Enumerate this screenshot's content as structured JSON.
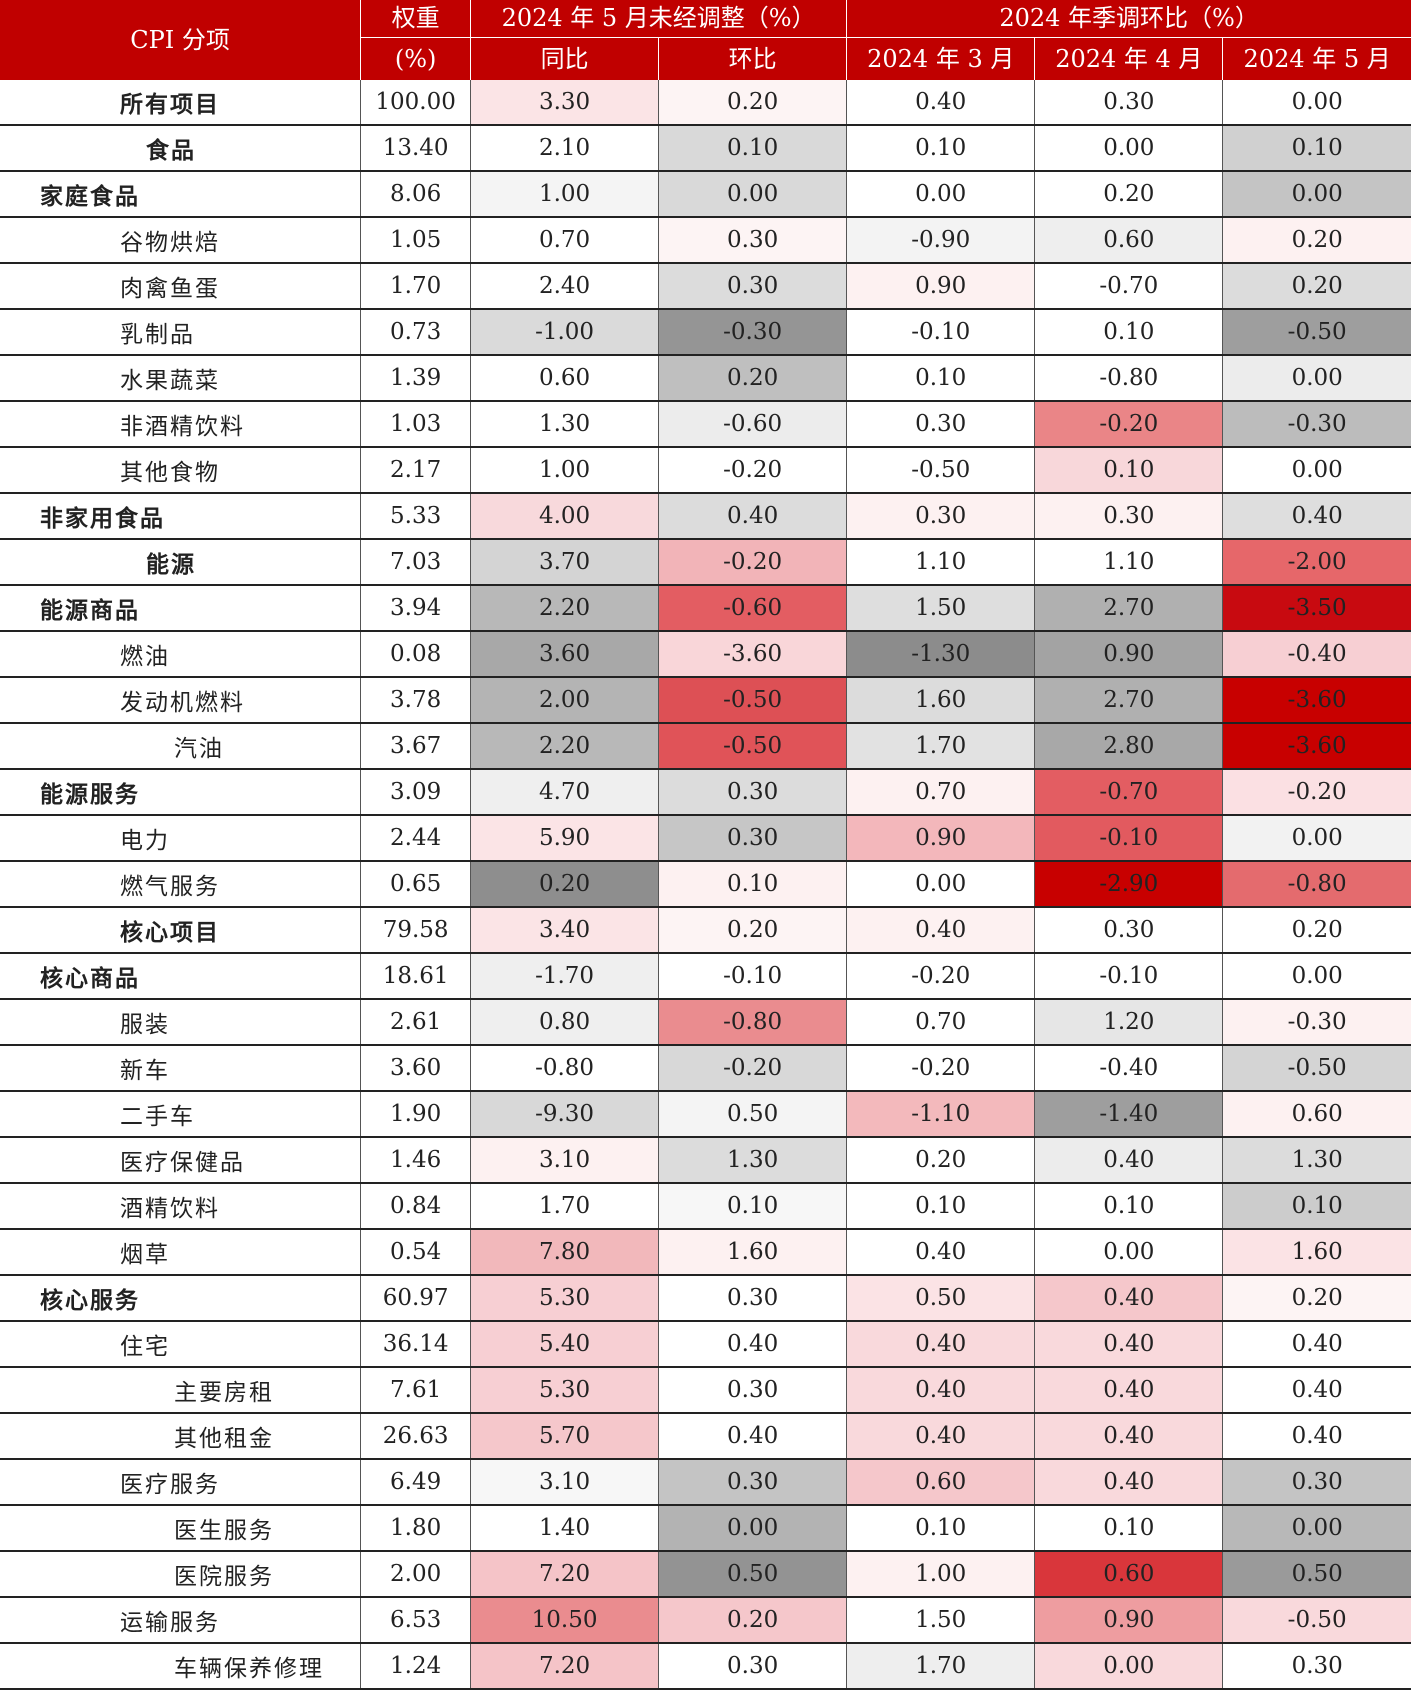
{
  "header": {
    "cpi_item": "CPI 分项",
    "weight_line1": "权重",
    "weight_line2": "(%)",
    "unadjusted_group": "2024 年 5 月未经调整（%）",
    "seasonal_group": "2024 年季调环比（%）",
    "yoy": "同比",
    "mom": "环比",
    "mar": "2024 年 3 月",
    "apr": "2024 年 4 月",
    "may": "2024 年 5 月"
  },
  "rows": [
    {
      "name": "所有项目",
      "level": 1,
      "bold": true,
      "weight": "100.00",
      "yoy": "3.30",
      "mom": "0.20",
      "mar": "0.40",
      "apr": "0.30",
      "may": "0.00",
      "colors": [
        "#fbe4e6",
        "#fdf4f4",
        "#ffffff",
        "#ffffff",
        "#ffffff"
      ]
    },
    {
      "name": "食品",
      "level": 2,
      "bold": true,
      "weight": "13.40",
      "yoy": "2.10",
      "mom": "0.10",
      "mar": "0.10",
      "apr": "0.00",
      "may": "0.10",
      "colors": [
        "#ffffff",
        "#d9d9d9",
        "#ffffff",
        "#ffffff",
        "#d0d0d0"
      ]
    },
    {
      "name": "家庭食品",
      "level": 0,
      "bold": true,
      "weight": "8.06",
      "yoy": "1.00",
      "mom": "0.00",
      "mar": "0.00",
      "apr": "0.20",
      "may": "0.00",
      "colors": [
        "#f4f4f4",
        "#d9d9d9",
        "#ffffff",
        "#ffffff",
        "#c4c4c4"
      ]
    },
    {
      "name": "谷物烘焙",
      "level": 1,
      "bold": false,
      "weight": "1.05",
      "yoy": "0.70",
      "mom": "0.30",
      "mar": "-0.90",
      "apr": "0.60",
      "may": "0.20",
      "colors": [
        "#ffffff",
        "#fdf4f4",
        "#f3f3f3",
        "#eeeeee",
        "#fdf1f1"
      ]
    },
    {
      "name": "肉禽鱼蛋",
      "level": 1,
      "bold": false,
      "weight": "1.70",
      "yoy": "2.40",
      "mom": "0.30",
      "mar": "0.90",
      "apr": "-0.70",
      "may": "0.20",
      "colors": [
        "#ffffff",
        "#dcdcdc",
        "#fdf1f1",
        "#ffffff",
        "#dcdcdc"
      ]
    },
    {
      "name": "乳制品",
      "level": 1,
      "bold": false,
      "weight": "0.73",
      "yoy": "-1.00",
      "mom": "-0.30",
      "mar": "-0.10",
      "apr": "0.10",
      "may": "-0.50",
      "colors": [
        "#dadada",
        "#959595",
        "#ffffff",
        "#ffffff",
        "#9e9e9e"
      ]
    },
    {
      "name": "水果蔬菜",
      "level": 1,
      "bold": false,
      "weight": "1.39",
      "yoy": "0.60",
      "mom": "0.20",
      "mar": "0.10",
      "apr": "-0.80",
      "may": "0.00",
      "colors": [
        "#ffffff",
        "#bfbfbf",
        "#ffffff",
        "#ffffff",
        "#ececec"
      ]
    },
    {
      "name": "非酒精饮料",
      "level": 1,
      "bold": false,
      "weight": "1.03",
      "yoy": "1.30",
      "mom": "-0.60",
      "mar": "0.30",
      "apr": "-0.20",
      "may": "-0.30",
      "colors": [
        "#ffffff",
        "#ececec",
        "#ffffff",
        "#ea8587",
        "#bcbcbc"
      ]
    },
    {
      "name": "其他食物",
      "level": 1,
      "bold": false,
      "weight": "2.17",
      "yoy": "1.00",
      "mom": "-0.20",
      "mar": "-0.50",
      "apr": "0.10",
      "may": "0.00",
      "colors": [
        "#ffffff",
        "#ffffff",
        "#ffffff",
        "#f8d7da",
        "#ffffff"
      ]
    },
    {
      "name": "非家用食品",
      "level": 0,
      "bold": true,
      "weight": "5.33",
      "yoy": "4.00",
      "mom": "0.40",
      "mar": "0.30",
      "apr": "0.30",
      "may": "0.40",
      "colors": [
        "#f8d9dc",
        "#dcdcdc",
        "#fdf1f1",
        "#fdf1f1",
        "#dedede"
      ]
    },
    {
      "name": "能源",
      "level": 2,
      "bold": true,
      "weight": "7.03",
      "yoy": "3.70",
      "mom": "-0.20",
      "mar": "1.10",
      "apr": "1.10",
      "may": "-2.00",
      "colors": [
        "#d4d4d4",
        "#f2b4b8",
        "#ffffff",
        "#ffffff",
        "#e6676a"
      ]
    },
    {
      "name": "能源商品",
      "level": 0,
      "bold": true,
      "weight": "3.94",
      "yoy": "2.20",
      "mom": "-0.60",
      "mar": "1.50",
      "apr": "2.70",
      "may": "-3.50",
      "colors": [
        "#b8b8b8",
        "#e35d62",
        "#dedede",
        "#b0b0b0",
        "#c80a10"
      ]
    },
    {
      "name": "燃油",
      "level": 1,
      "bold": false,
      "weight": "0.08",
      "yoy": "3.60",
      "mom": "-3.60",
      "mar": "-1.30",
      "apr": "0.90",
      "may": "-0.40",
      "colors": [
        "#a8a8a8",
        "#f9d6d9",
        "#8c8c8c",
        "#a3a3a3",
        "#f7cfd3"
      ]
    },
    {
      "name": "发动机燃料",
      "level": 1,
      "bold": false,
      "weight": "3.78",
      "yoy": "2.00",
      "mom": "-0.50",
      "mar": "1.60",
      "apr": "2.70",
      "may": "-3.60",
      "colors": [
        "#b4b4b4",
        "#dd5055",
        "#dcdcdc",
        "#b0b0b0",
        "#c80000"
      ]
    },
    {
      "name": "汽油",
      "level": 3,
      "bold": false,
      "weight": "3.67",
      "yoy": "2.20",
      "mom": "-0.50",
      "mar": "1.70",
      "apr": "2.80",
      "may": "-3.60",
      "colors": [
        "#b8b8b8",
        "#e05358",
        "#e2e2e2",
        "#a8a8a8",
        "#c80000"
      ]
    },
    {
      "name": "能源服务",
      "level": 0,
      "bold": true,
      "weight": "3.09",
      "yoy": "4.70",
      "mom": "0.30",
      "mar": "0.70",
      "apr": "-0.70",
      "may": "-0.20",
      "colors": [
        "#efefef",
        "#dcdcdc",
        "#fdf1f1",
        "#e35d62",
        "#fbe0e3"
      ]
    },
    {
      "name": "电力",
      "level": 1,
      "bold": false,
      "weight": "2.44",
      "yoy": "5.90",
      "mom": "0.30",
      "mar": "0.90",
      "apr": "-0.10",
      "may": "0.00",
      "colors": [
        "#fbe4e6",
        "#c6c6c6",
        "#f3b7bb",
        "#e25a5f",
        "#f2f2f2"
      ]
    },
    {
      "name": "燃气服务",
      "level": 1,
      "bold": false,
      "weight": "0.65",
      "yoy": "0.20",
      "mom": "0.10",
      "mar": "0.00",
      "apr": "-2.90",
      "may": "-0.80",
      "colors": [
        "#8e8e8e",
        "#fdf1f1",
        "#ffffff",
        "#c80000",
        "#e46b6e"
      ]
    },
    {
      "name": "核心项目",
      "level": 1,
      "bold": true,
      "weight": "79.58",
      "yoy": "3.40",
      "mom": "0.20",
      "mar": "0.40",
      "apr": "0.30",
      "may": "0.20",
      "colors": [
        "#fbe4e6",
        "#fdf4f4",
        "#fdf1f1",
        "#ffffff",
        "#ffffff"
      ]
    },
    {
      "name": "核心商品",
      "level": 0,
      "bold": true,
      "weight": "18.61",
      "yoy": "-1.70",
      "mom": "-0.10",
      "mar": "-0.20",
      "apr": "-0.10",
      "may": "0.00",
      "colors": [
        "#efefef",
        "#ffffff",
        "#ffffff",
        "#ffffff",
        "#ffffff"
      ]
    },
    {
      "name": "服装",
      "level": 1,
      "bold": false,
      "weight": "2.61",
      "yoy": "0.80",
      "mom": "-0.80",
      "mar": "0.70",
      "apr": "1.20",
      "may": "-0.30",
      "colors": [
        "#efefef",
        "#ea8c8f",
        "#ffffff",
        "#e6e6e6",
        "#fdf1f1"
      ]
    },
    {
      "name": "新车",
      "level": 1,
      "bold": false,
      "weight": "3.60",
      "yoy": "-0.80",
      "mom": "-0.20",
      "mar": "-0.20",
      "apr": "-0.40",
      "may": "-0.50",
      "colors": [
        "#ffffff",
        "#d8d8d8",
        "#ffffff",
        "#ffffff",
        "#d4d4d4"
      ]
    },
    {
      "name": "二手车",
      "level": 1,
      "bold": false,
      "weight": "1.90",
      "yoy": "-9.30",
      "mom": "0.50",
      "mar": "-1.10",
      "apr": "-1.40",
      "may": "0.60",
      "colors": [
        "#d8d8d8",
        "#f4f4f4",
        "#f3b9bc",
        "#9e9e9e",
        "#fdf1f1"
      ]
    },
    {
      "name": "医疗保健品",
      "level": 1,
      "bold": false,
      "weight": "1.46",
      "yoy": "3.10",
      "mom": "1.30",
      "mar": "0.20",
      "apr": "0.40",
      "may": "1.30",
      "colors": [
        "#fdf1f1",
        "#dcdcdc",
        "#ffffff",
        "#ececec",
        "#dcdcdc"
      ]
    },
    {
      "name": "酒精饮料",
      "level": 1,
      "bold": false,
      "weight": "0.84",
      "yoy": "1.70",
      "mom": "0.10",
      "mar": "0.10",
      "apr": "0.10",
      "may": "0.10",
      "colors": [
        "#ffffff",
        "#f7f7f7",
        "#ffffff",
        "#ffffff",
        "#cccccc"
      ]
    },
    {
      "name": "烟草",
      "level": 1,
      "bold": false,
      "weight": "0.54",
      "yoy": "7.80",
      "mom": "1.60",
      "mar": "0.40",
      "apr": "0.00",
      "may": "1.60",
      "colors": [
        "#f2b8bb",
        "#fdf1f1",
        "#ffffff",
        "#ffffff",
        "#fbe3e5"
      ]
    },
    {
      "name": "核心服务",
      "level": 0,
      "bold": true,
      "weight": "60.97",
      "yoy": "5.30",
      "mom": "0.30",
      "mar": "0.50",
      "apr": "0.40",
      "may": "0.20",
      "colors": [
        "#f7cfd3",
        "#ffffff",
        "#fbe3e5",
        "#f5c7cb",
        "#fdf4f4"
      ]
    },
    {
      "name": "住宅",
      "level": 1,
      "bold": false,
      "weight": "36.14",
      "yoy": "5.40",
      "mom": "0.40",
      "mar": "0.40",
      "apr": "0.40",
      "may": "0.40",
      "colors": [
        "#f7cfd3",
        "#ffffff",
        "#f9d9dc",
        "#f9d9dc",
        "#ffffff"
      ]
    },
    {
      "name": "主要房租",
      "level": 3,
      "bold": false,
      "weight": "7.61",
      "yoy": "5.30",
      "mom": "0.30",
      "mar": "0.40",
      "apr": "0.40",
      "may": "0.40",
      "colors": [
        "#f7cfd3",
        "#ffffff",
        "#f9d9dc",
        "#f9d9dc",
        "#ffffff"
      ]
    },
    {
      "name": "其他租金",
      "level": 3,
      "bold": false,
      "weight": "26.63",
      "yoy": "5.70",
      "mom": "0.40",
      "mar": "0.40",
      "apr": "0.40",
      "may": "0.40",
      "colors": [
        "#f5c7cb",
        "#ffffff",
        "#f9d9dc",
        "#f9d9dc",
        "#ffffff"
      ]
    },
    {
      "name": "医疗服务",
      "level": 1,
      "bold": false,
      "weight": "6.49",
      "yoy": "3.10",
      "mom": "0.30",
      "mar": "0.60",
      "apr": "0.40",
      "may": "0.30",
      "colors": [
        "#f7f7f7",
        "#c4c4c4",
        "#f5c7cb",
        "#f9d9dc",
        "#c4c4c4"
      ]
    },
    {
      "name": "医生服务",
      "level": 3,
      "bold": false,
      "weight": "1.80",
      "yoy": "1.40",
      "mom": "0.00",
      "mar": "0.10",
      "apr": "0.10",
      "may": "0.00",
      "colors": [
        "#ffffff",
        "#b3b3b3",
        "#ffffff",
        "#ffffff",
        "#b8b8b8"
      ]
    },
    {
      "name": "医院服务",
      "level": 3,
      "bold": false,
      "weight": "2.00",
      "yoy": "7.20",
      "mom": "0.50",
      "mar": "1.00",
      "apr": "0.60",
      "may": "0.50",
      "colors": [
        "#f5c4c8",
        "#939393",
        "#fdf1f1",
        "#d9363b",
        "#9a9a9a"
      ]
    },
    {
      "name": "运输服务",
      "level": 1,
      "bold": false,
      "weight": "6.53",
      "yoy": "10.50",
      "mom": "0.20",
      "mar": "1.50",
      "apr": "0.90",
      "may": "-0.50",
      "colors": [
        "#ea8c8f",
        "#f5c7cb",
        "#ffffff",
        "#ee9da0",
        "#f9d9dc"
      ]
    },
    {
      "name": "车辆保养修理",
      "level": 3,
      "bold": false,
      "weight": "1.24",
      "yoy": "7.20",
      "mom": "0.30",
      "mar": "1.70",
      "apr": "0.00",
      "may": "0.30",
      "colors": [
        "#f5c4c8",
        "#ffffff",
        "#eeeeee",
        "#f9d9dc",
        "#ffffff"
      ]
    }
  ]
}
